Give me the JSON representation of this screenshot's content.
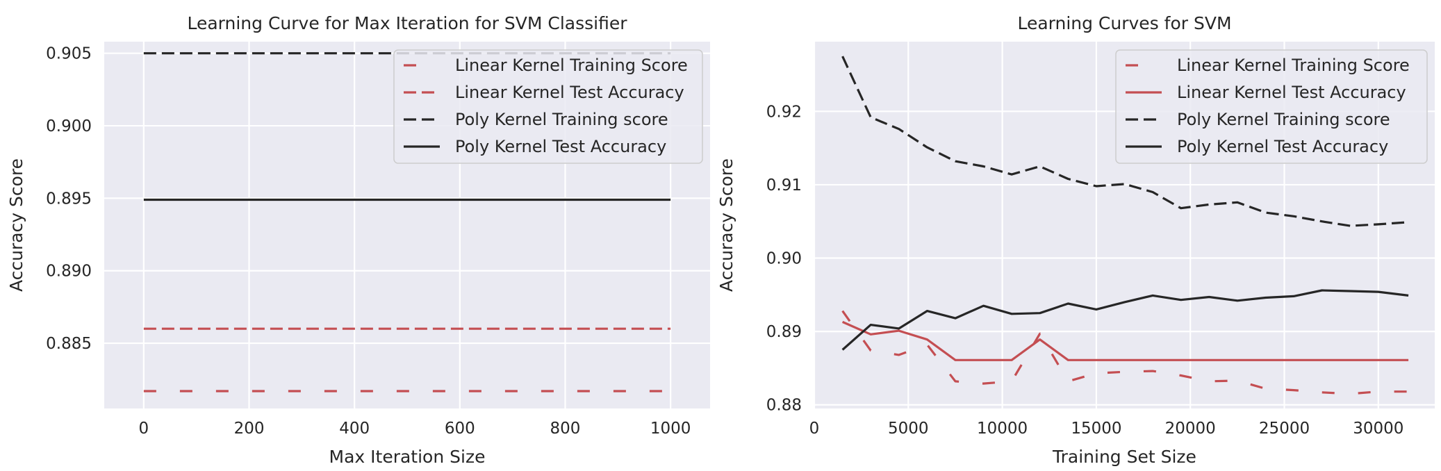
{
  "chart_data": [
    {
      "type": "line",
      "title": "Learning Curve for Max Iteration for SVM Classifier",
      "xlabel": "Max Iteration Size",
      "ylabel": "Accuracy Score",
      "xlim": [
        -75,
        1075
      ],
      "ylim": [
        0.8805,
        0.9058
      ],
      "xticks": [
        0,
        200,
        400,
        600,
        800,
        1000
      ],
      "yticks": [
        0.885,
        0.89,
        0.895,
        0.9,
        0.905
      ],
      "ytick_labels": [
        "0.885",
        "0.890",
        "0.895",
        "0.900",
        "0.905"
      ],
      "grid": true,
      "legend_position": "top-right",
      "series": [
        {
          "name": "Linear Kernel Training Score",
          "color": "#c44e52",
          "dash": "loose",
          "x": [
            0,
            1000
          ],
          "y": [
            0.8817,
            0.8817
          ]
        },
        {
          "name": "Linear Kernel Test Accuracy",
          "color": "#c44e52",
          "dash": "dashed",
          "x": [
            0,
            1000
          ],
          "y": [
            0.886,
            0.886
          ]
        },
        {
          "name": "Poly Kernel Training score",
          "color": "#262626",
          "dash": "dashed",
          "x": [
            0,
            1000
          ],
          "y": [
            0.905,
            0.905
          ]
        },
        {
          "name": "Poly Kernel Test Accuracy",
          "color": "#262626",
          "dash": "solid",
          "x": [
            0,
            1000
          ],
          "y": [
            0.8949,
            0.8949
          ]
        }
      ]
    },
    {
      "type": "line",
      "title": "Learning Curves for SVM",
      "xlabel": "Training Set Size",
      "ylabel": "Accuracy Score",
      "xlim": [
        0,
        33000
      ],
      "ylim": [
        0.8795,
        0.9295
      ],
      "xticks": [
        0,
        5000,
        10000,
        15000,
        20000,
        25000,
        30000
      ],
      "yticks": [
        0.88,
        0.89,
        0.9,
        0.91,
        0.92
      ],
      "ytick_labels": [
        "0.88",
        "0.89",
        "0.90",
        "0.91",
        "0.92"
      ],
      "grid": true,
      "legend_position": "top-right",
      "series": [
        {
          "name": "Linear Kernel Training Score",
          "color": "#c44e52",
          "dash": "loose",
          "x": [
            1500,
            3000,
            4500,
            6000,
            7500,
            9000,
            10500,
            12000,
            13500,
            15000,
            16500,
            18000,
            19500,
            21000,
            22500,
            24000,
            25500,
            27000,
            28500,
            30000,
            31600
          ],
          "y": [
            0.8928,
            0.8874,
            0.8868,
            0.8882,
            0.8832,
            0.8829,
            0.8832,
            0.8897,
            0.8832,
            0.8843,
            0.8845,
            0.8846,
            0.884,
            0.8832,
            0.8833,
            0.8822,
            0.882,
            0.8817,
            0.8815,
            0.8818,
            0.8818
          ]
        },
        {
          "name": "Linear Kernel Test Accuracy",
          "color": "#c44e52",
          "dash": "solid",
          "x": [
            1500,
            3000,
            4500,
            6000,
            7500,
            9000,
            10500,
            12000,
            13500,
            15000,
            16500,
            18000,
            19500,
            21000,
            22500,
            24000,
            25500,
            27000,
            28500,
            30000,
            31600
          ],
          "y": [
            0.8913,
            0.8896,
            0.8901,
            0.8889,
            0.8861,
            0.8861,
            0.8861,
            0.8889,
            0.8861,
            0.8861,
            0.8861,
            0.8861,
            0.8861,
            0.8861,
            0.8861,
            0.8861,
            0.8861,
            0.8861,
            0.8861,
            0.8861,
            0.8861
          ]
        },
        {
          "name": "Poly Kernel Training score",
          "color": "#262626",
          "dash": "dashed",
          "x": [
            1500,
            3000,
            4500,
            6000,
            7500,
            9000,
            10500,
            12000,
            13500,
            15000,
            16500,
            18000,
            19500,
            21000,
            22500,
            24000,
            25500,
            27000,
            28500,
            30000,
            31600
          ],
          "y": [
            0.9275,
            0.9192,
            0.9176,
            0.9151,
            0.9132,
            0.9125,
            0.9114,
            0.9125,
            0.9108,
            0.9098,
            0.9101,
            0.909,
            0.9068,
            0.9073,
            0.9076,
            0.9062,
            0.9057,
            0.905,
            0.9044,
            0.9046,
            0.9049
          ]
        },
        {
          "name": "Poly Kernel Test Accuracy",
          "color": "#262626",
          "dash": "solid",
          "x": [
            1500,
            3000,
            4500,
            6000,
            7500,
            9000,
            10500,
            12000,
            13500,
            15000,
            16500,
            18000,
            19500,
            21000,
            22500,
            24000,
            25500,
            27000,
            28500,
            30000,
            31600
          ],
          "y": [
            0.8875,
            0.8909,
            0.8904,
            0.8928,
            0.8918,
            0.8935,
            0.8924,
            0.8925,
            0.8938,
            0.893,
            0.894,
            0.8949,
            0.8943,
            0.8947,
            0.8942,
            0.8946,
            0.8948,
            0.8956,
            0.8955,
            0.8954,
            0.8949
          ]
        }
      ]
    }
  ]
}
